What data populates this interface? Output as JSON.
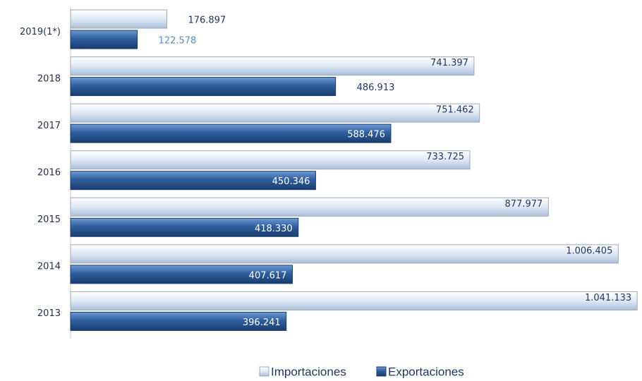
{
  "chart_data": {
    "type": "bar",
    "orientation": "horizontal",
    "categories": [
      "2019(1*)",
      "2018",
      "2017",
      "2016",
      "2015",
      "2014",
      "2013"
    ],
    "series": [
      {
        "name": "Importaciones",
        "color": "#c6d7ec",
        "values": [
          176897,
          741397,
          751462,
          733725,
          877977,
          1006405,
          1041133
        ],
        "value_labels": [
          "176.897",
          "741.397",
          "751.462",
          "733.725",
          "877.977",
          "1.006.405",
          "1.041.133"
        ]
      },
      {
        "name": "Exportaciones",
        "color": "#2f5f9e",
        "values": [
          122578,
          486913,
          588476,
          450346,
          418330,
          407617,
          396241
        ],
        "value_labels": [
          "122.578",
          "486.913",
          "588.476",
          "450.346",
          "418.330",
          "407.617",
          "396.241"
        ]
      }
    ],
    "xlim": [
      0,
      1050000
    ],
    "legend": "bottom"
  }
}
